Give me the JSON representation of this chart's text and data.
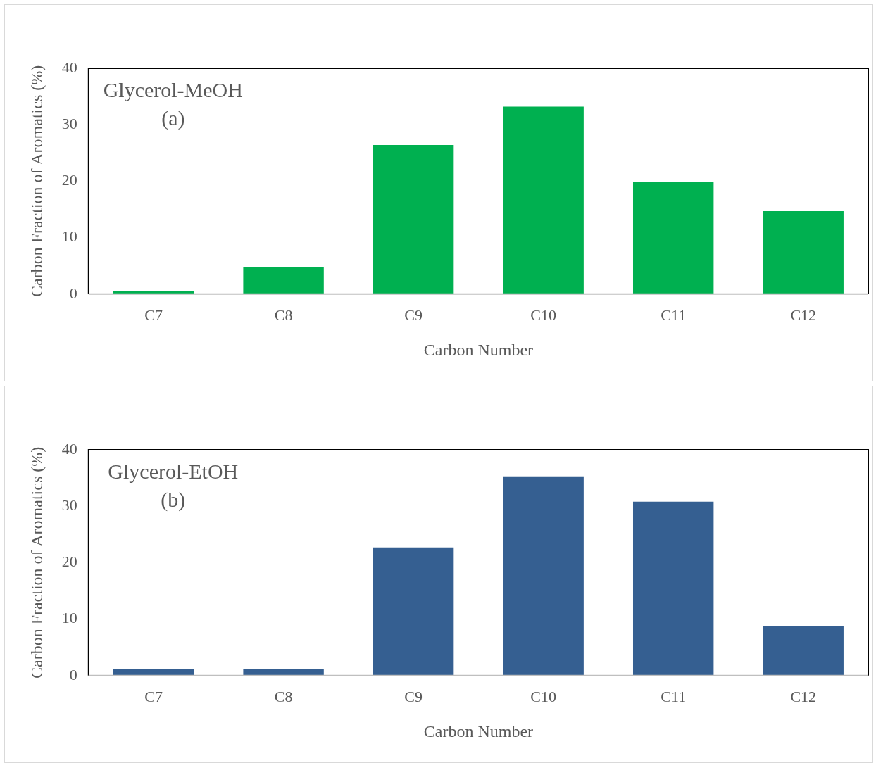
{
  "chart_data": [
    {
      "type": "bar",
      "annotations": [
        "Glycerol-MeOH",
        "(a)"
      ],
      "xlabel": "Carbon Number",
      "ylabel": "Carbon Fraction of Aromatics (%)",
      "categories": [
        "C7",
        "C8",
        "C9",
        "C10",
        "C11",
        "C12"
      ],
      "values": [
        0.5,
        4.7,
        26.4,
        33.2,
        19.8,
        14.7
      ],
      "color": "#00b050",
      "ylim": [
        0,
        40
      ],
      "yticks": [
        0,
        10,
        20,
        30,
        40
      ],
      "grid": false,
      "legend": false
    },
    {
      "type": "bar",
      "annotations": [
        "Glycerol-EtOH",
        "(b)"
      ],
      "xlabel": "Carbon Number",
      "ylabel": "Carbon Fraction of Aromatics (%)",
      "categories": [
        "C7",
        "C8",
        "C9",
        "C10",
        "C11",
        "C12"
      ],
      "values": [
        1.1,
        1.1,
        22.7,
        35.3,
        30.8,
        8.8
      ],
      "color": "#355f91",
      "ylim": [
        0,
        40
      ],
      "yticks": [
        0,
        10,
        20,
        30,
        40
      ],
      "grid": false,
      "legend": false
    }
  ]
}
